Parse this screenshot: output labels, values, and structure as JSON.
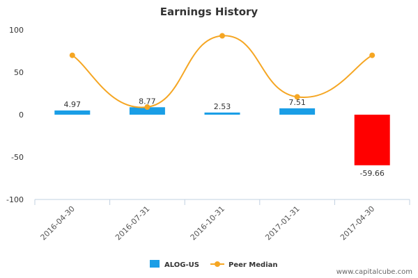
{
  "chart_data": {
    "type": "bar",
    "title": "Earnings History",
    "categories": [
      "2016-04-30",
      "2016-07-31",
      "2016-10-31",
      "2017-01-31",
      "2017-04-30"
    ],
    "series": [
      {
        "name": "ALOG-US",
        "kind": "bar",
        "values": [
          4.97,
          8.77,
          2.53,
          7.51,
          -59.66
        ],
        "value_labels": [
          "4.97",
          "8.77",
          "2.53",
          "7.51",
          "-59.66"
        ],
        "color": "#1a9ee6",
        "negative_color": "#ff0000"
      },
      {
        "name": "Peer Median",
        "kind": "line",
        "values": [
          70,
          9,
          93,
          21,
          70
        ],
        "color": "#f5a623"
      }
    ],
    "ylim": [
      -100,
      100
    ],
    "yticks": [
      100,
      50,
      0,
      -50,
      -100
    ],
    "xlabel": "",
    "ylabel": "",
    "legend_position": "bottom-center",
    "grid": false
  },
  "watermark": "www.capitalcube.com"
}
